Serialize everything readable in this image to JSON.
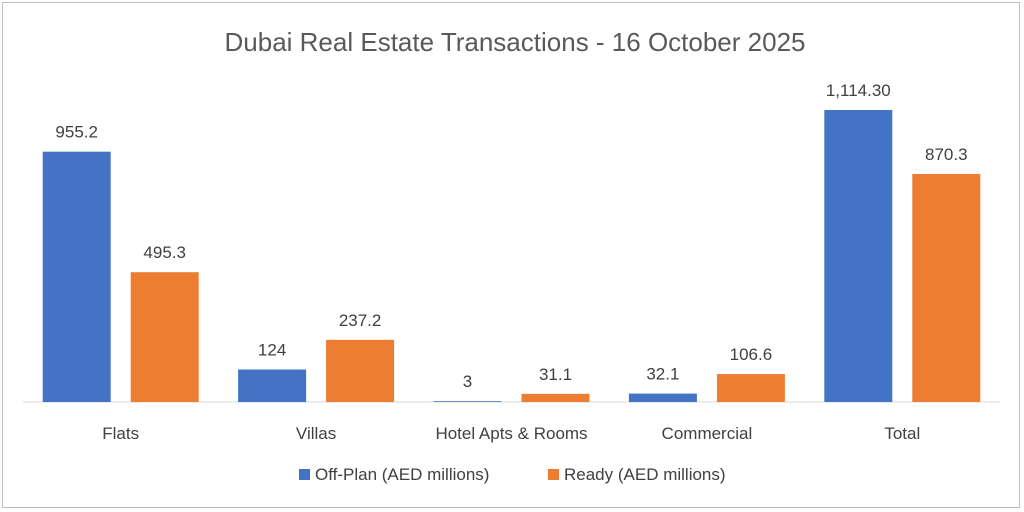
{
  "chart_data": {
    "type": "bar",
    "title": "Dubai Real Estate Transactions - 16 October 2025",
    "categories": [
      "Flats",
      "Villas",
      "Hotel Apts & Rooms",
      "Commercial",
      "Total"
    ],
    "series": [
      {
        "name": "Off-Plan (AED millions)",
        "color": "#4472c4",
        "values": [
          955.2,
          124,
          3,
          32.1,
          1114.3
        ],
        "labels": [
          "955.2",
          "124",
          "3",
          "32.1",
          "1,114.30"
        ]
      },
      {
        "name": "Ready (AED millions)",
        "color": "#ed7d31",
        "values": [
          495.3,
          237.2,
          31.1,
          106.6,
          870.3
        ],
        "labels": [
          "495.3",
          "237.2",
          "31.1",
          "106.6",
          "870.3"
        ]
      }
    ],
    "ylim": [
      0,
      1114.3
    ],
    "grid": false,
    "legend": "bottom"
  }
}
